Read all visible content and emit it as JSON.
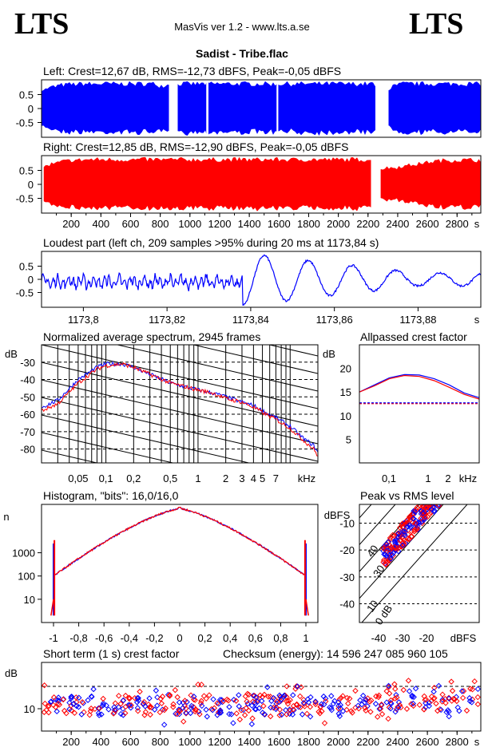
{
  "logos": {
    "left": "LTS",
    "right": "LTS"
  },
  "header": {
    "app": "MasVis ver 1.2 - www.lts.a.se",
    "file": "Sadist - Tribe.flac"
  },
  "colors": {
    "left": "#0000ff",
    "right": "#ff0000",
    "grid": "#000000"
  },
  "chart_data": [
    {
      "type": "area",
      "title": "Left: Crest=12,67 dB, RMS=-12,73 dBFS, Peak=-0,05 dBFS",
      "series": [
        {
          "name": "Left",
          "color": "#0000ff",
          "envelope": [
            0.75,
            0.8,
            0.85,
            0.9,
            0.92,
            0.95,
            0.95,
            0.96,
            0.97,
            0.97,
            0.95,
            0.97,
            0.97,
            0.97,
            0.97,
            0.96,
            0.97,
            0.97,
            0.97,
            0.96,
            0.97,
            0.97,
            0.97,
            0.95,
            0.9,
            0.92,
            0.97,
            0.97,
            0.97,
            0.97,
            0.96,
            0.97,
            0.97,
            0.97,
            0.97,
            0.96,
            0.97,
            0.97,
            0.97,
            0.97,
            0.97,
            0.97,
            0.97,
            0.96,
            0.97,
            0.97,
            0.97,
            0.96,
            0.97,
            0.97,
            0.97,
            0.96,
            0.97,
            0.97,
            0.97,
            0.96,
            0.97,
            0.97,
            0.97,
            0.97,
            0.97,
            0.97,
            0.96,
            0.97,
            0.97,
            0.96,
            0.97,
            0.97,
            0.9,
            0.85,
            0.8,
            0.75,
            0.88,
            0.95,
            0.97,
            0.97,
            0.97,
            0.96,
            0.97,
            0.97,
            0.97,
            0.96,
            0.97,
            0.97,
            0.97,
            0.97,
            0.97,
            0.97,
            0.97,
            0.96
          ]
        }
      ],
      "yticks": [
        "0.5",
        "0",
        "-0.5"
      ],
      "ylim": [
        -1,
        1
      ]
    },
    {
      "type": "area",
      "title": "Right: Crest=12,85 dB, RMS=-12,90 dBFS, Peak=-0,05 dBFS",
      "series": [
        {
          "name": "Right",
          "color": "#ff0000",
          "envelope": [
            0.7,
            0.75,
            0.8,
            0.85,
            0.9,
            0.92,
            0.95,
            0.95,
            0.96,
            0.97,
            0.97,
            0.97,
            0.97,
            0.97,
            0.97,
            0.97,
            0.97,
            0.97,
            0.96,
            0.97,
            0.97,
            0.97,
            0.97,
            0.97,
            0.97,
            0.96,
            0.97,
            0.97,
            0.97,
            0.97,
            0.97,
            0.97,
            0.97,
            0.97,
            0.96,
            0.97,
            0.97,
            0.97,
            0.97,
            0.97,
            0.97,
            0.97,
            0.96,
            0.97,
            0.97,
            0.97,
            0.97,
            0.97,
            0.97,
            0.97,
            0.97,
            0.96,
            0.97,
            0.97,
            0.97,
            0.97,
            0.97,
            0.97,
            0.97,
            0.97,
            0.97,
            0.97,
            0.97,
            0.97,
            0.97,
            0.97,
            0.97,
            0.97,
            0.4,
            0.6,
            0.65,
            0.65,
            0.65,
            0.7,
            0.72,
            0.75,
            0.78,
            0.8,
            0.85,
            0.88,
            0.9,
            0.92,
            0.93,
            0.94,
            0.95,
            0.95,
            0.95,
            0.95,
            0.95,
            0.95
          ]
        }
      ],
      "yticks": [
        "0.5",
        "0",
        "-0.5"
      ],
      "ylim": [
        -1,
        1
      ]
    },
    {
      "type": "line",
      "title": "Loudest part (left  ch, 209 samples >95% during 20 ms at 1173,84 s)",
      "xlim": [
        1173.79,
        1173.895
      ],
      "xticks": [
        "1173,8",
        "1173,82",
        "1173,84",
        "1173,86",
        "1173,88"
      ],
      "xtick_values": [
        1173.8,
        1173.82,
        1173.84,
        1173.86,
        1173.88
      ],
      "xunit": "s",
      "ylim": [
        -1,
        1
      ],
      "yticks": [
        "0.5",
        "0",
        "-0.5"
      ],
      "series": [
        {
          "name": "Left",
          "color": "#0000ff"
        }
      ]
    },
    {
      "type": "line",
      "title": "Normalized average spectrum, 2945 frames",
      "ylabel": "dB",
      "yticks": [
        "-30",
        "-40",
        "-50",
        "-60",
        "-70",
        "-80"
      ],
      "ytick_values": [
        -30,
        -40,
        -50,
        -60,
        -70,
        -80
      ],
      "ylim": [
        -88,
        -20
      ],
      "xticks": [
        "0,05",
        "0,1",
        "0,2",
        "0,5",
        "1",
        "2",
        "3",
        "4",
        "5",
        "7",
        "kHz"
      ],
      "xscale": "log",
      "series": [
        {
          "name": "Left",
          "color": "#0000ff",
          "x": [
            0.02,
            0.03,
            0.05,
            0.08,
            0.1,
            0.15,
            0.2,
            0.3,
            0.5,
            0.7,
            1,
            1.5,
            2,
            3,
            4,
            5,
            7,
            10,
            14,
            18,
            20
          ],
          "y": [
            -56,
            -52,
            -40,
            -33,
            -31,
            -31,
            -33,
            -37,
            -42,
            -44,
            -46,
            -48,
            -50,
            -53,
            -55,
            -58,
            -62,
            -67,
            -74,
            -78,
            -82
          ]
        },
        {
          "name": "Right",
          "color": "#ff0000",
          "x": [
            0.02,
            0.03,
            0.05,
            0.08,
            0.1,
            0.15,
            0.2,
            0.3,
            0.5,
            0.7,
            1,
            1.5,
            2,
            3,
            4,
            5,
            7,
            10,
            14,
            18,
            20
          ],
          "y": [
            -58,
            -54,
            -42,
            -34,
            -32,
            -31,
            -33,
            -37,
            -42,
            -44,
            -46,
            -48,
            -51,
            -53,
            -56,
            -59,
            -63,
            -68,
            -75,
            -80,
            -84
          ]
        }
      ]
    },
    {
      "type": "line",
      "title": "Allpassed crest factor",
      "ylabel": "dB",
      "yticks": [
        "20",
        "15",
        "10",
        "5"
      ],
      "ytick_values": [
        20,
        15,
        10,
        5
      ],
      "ylim": [
        0,
        25
      ],
      "xticks": [
        "0,1",
        "1",
        "2",
        "kHz"
      ],
      "series": [
        {
          "name": "Left",
          "color": "#0000ff",
          "y": [
            15,
            16.5,
            18,
            18.7,
            18.6,
            17.8,
            16.5,
            14.8,
            13.8
          ]
        },
        {
          "name": "Right",
          "color": "#ff0000",
          "y": [
            15,
            16.3,
            17.8,
            18.5,
            18.3,
            17.4,
            16,
            14.5,
            13.5
          ]
        }
      ],
      "reference": 12.7
    },
    {
      "type": "line",
      "title": "Histogram, \"bits\": 16,0/16,0",
      "ylabel": "n",
      "yticks": [
        "1000",
        "100",
        "10"
      ],
      "ytick_values": [
        1000,
        100,
        10
      ],
      "xticks": [
        "-1",
        "-0,8",
        "-0,6",
        "-0,4",
        "-0,2",
        "0",
        "0,2",
        "0,4",
        "0,6",
        "0,8",
        "1"
      ],
      "xtick_values": [
        -1,
        -0.8,
        -0.6,
        -0.4,
        -0.2,
        0,
        0.2,
        0.4,
        0.6,
        0.8,
        1
      ],
      "yscale": "log",
      "series": [
        {
          "name": "Left",
          "color": "#0000ff"
        },
        {
          "name": "Right",
          "color": "#ff0000"
        }
      ]
    },
    {
      "type": "scatter",
      "title": "Peak vs RMS level",
      "ylabel": "dBFS",
      "xlabel": "dBFS",
      "yticks": [
        "-10",
        "-20",
        "-30",
        "-40"
      ],
      "ytick_values": [
        -10,
        -20,
        -30,
        -40
      ],
      "xticks": [
        "-40",
        "-30",
        "-20"
      ],
      "xtick_values": [
        -40,
        -30,
        -20
      ],
      "diagonal_labels": [
        "40",
        "30",
        "20",
        "10",
        "0 dB"
      ],
      "series": [
        {
          "name": "Left",
          "color": "#0000ff"
        },
        {
          "name": "Right",
          "color": "#ff0000"
        }
      ]
    },
    {
      "type": "scatter",
      "title": "Short term (1 s) crest factor",
      "checksum": "Checksum (energy):  14 596 247 085 960 105",
      "ylabel": "dB",
      "yticks": [
        "10"
      ],
      "series": [
        {
          "name": "Left",
          "color": "#0000ff"
        },
        {
          "name": "Right",
          "color": "#ff0000"
        }
      ]
    }
  ],
  "time_axis": {
    "ticks": [
      "200",
      "400",
      "600",
      "800",
      "1000",
      "1200",
      "1400",
      "1600",
      "1800",
      "2000",
      "2200",
      "2400",
      "2600",
      "2800"
    ],
    "unit": "s",
    "max": 2960
  }
}
